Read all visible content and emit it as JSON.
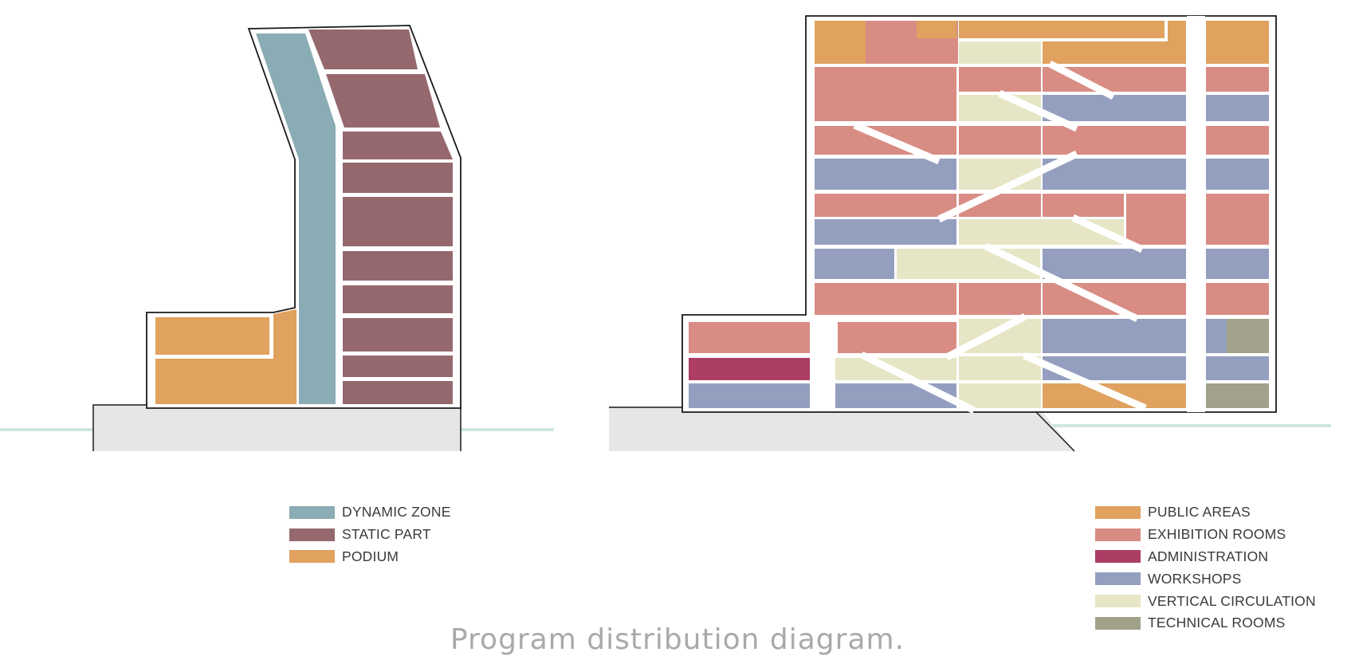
{
  "colors": {
    "dynamic_zone": "#8aacb4",
    "static_part": "#95686e",
    "podium": "#e0a25e",
    "public_areas": "#e0a25e",
    "exhibition_rooms": "#d88c84",
    "administration": "#ac3e66",
    "workshops": "#949fc0",
    "vertical_circulation": "#e6e6c6",
    "technical_rooms": "#a1a18c",
    "ground": "#e6e6e6",
    "water_line": "#cde6e0",
    "outline": "#1a1a1a"
  },
  "legend_left": [
    {
      "label": "DYNAMIC ZONE",
      "color": "#8aacb4"
    },
    {
      "label": "STATIC PART",
      "color": "#95686e"
    },
    {
      "label": "PODIUM",
      "color": "#e0a25e"
    }
  ],
  "legend_right": [
    {
      "label": "PUBLIC AREAS",
      "color": "#e0a25e"
    },
    {
      "label": "EXHIBITION ROOMS",
      "color": "#d88c84"
    },
    {
      "label": "ADMINISTRATION",
      "color": "#ac3e66"
    },
    {
      "label": "WORKSHOPS",
      "color": "#949fc0"
    },
    {
      "label": "VERTICAL CIRCULATION",
      "color": "#e6e6c6"
    },
    {
      "label": "TECHNICAL ROOMS",
      "color": "#a1a18c"
    }
  ],
  "caption": "Program distribution diagram."
}
